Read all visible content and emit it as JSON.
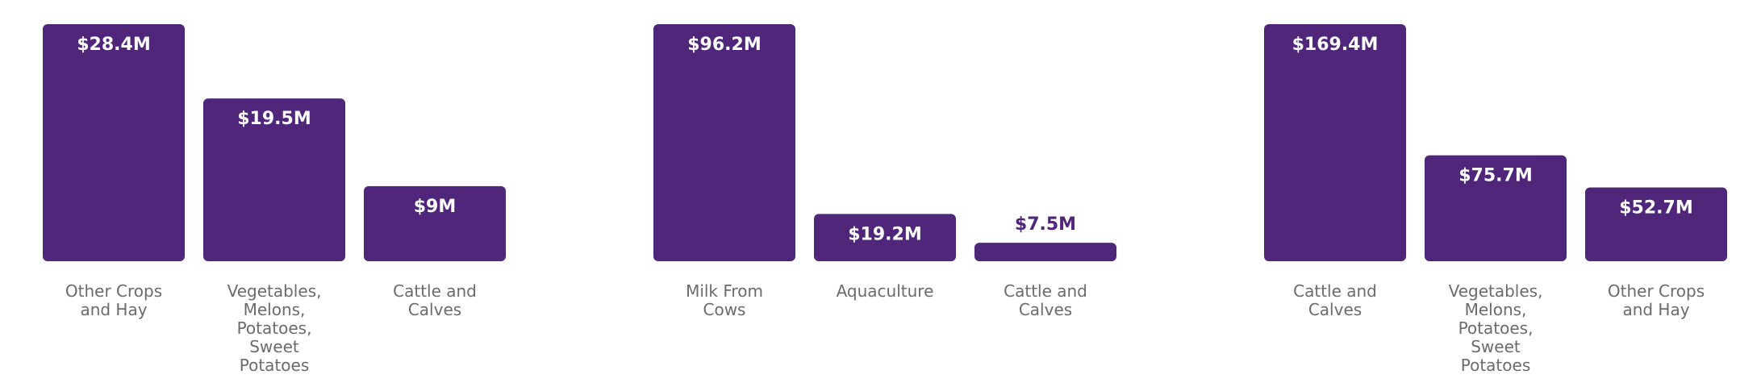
{
  "colors": {
    "bar": "#4f267a",
    "label_text": "#6b6b6b",
    "value_text_inside": "#ffffff"
  },
  "chart_data": [
    {
      "type": "bar",
      "categories": [
        "Other Crops and Hay",
        "Vegetables, Melons, Potatoes, Sweet Potatoes",
        "Cattle and Calves"
      ],
      "category_lines": [
        [
          "Other Crops",
          "and Hay"
        ],
        [
          "Vegetables,",
          "Melons,",
          "Potatoes,",
          "Sweet",
          "Potatoes"
        ],
        [
          "Cattle and",
          "Calves"
        ]
      ],
      "values": [
        28.4,
        19.5,
        9
      ],
      "value_labels": [
        "$28.4M",
        "$19.5M",
        "$9M"
      ],
      "ylim": [
        0,
        28.4
      ],
      "grid": false
    },
    {
      "type": "bar",
      "categories": [
        "Milk From Cows",
        "Aquaculture",
        "Cattle and Calves"
      ],
      "category_lines": [
        [
          "Milk From",
          "Cows"
        ],
        [
          "Aquaculture"
        ],
        [
          "Cattle and",
          "Calves"
        ]
      ],
      "values": [
        96.2,
        19.2,
        7.5
      ],
      "value_labels": [
        "$96.2M",
        "$19.2M",
        "$7.5M"
      ],
      "ylim": [
        0,
        96.2
      ],
      "grid": false
    },
    {
      "type": "bar",
      "categories": [
        "Cattle and Calves",
        "Vegetables, Melons, Potatoes, Sweet Potatoes",
        "Other Crops and Hay"
      ],
      "category_lines": [
        [
          "Cattle and",
          "Calves"
        ],
        [
          "Vegetables,",
          "Melons,",
          "Potatoes,",
          "Sweet",
          "Potatoes"
        ],
        [
          "Other Crops",
          "and Hay"
        ]
      ],
      "values": [
        169.4,
        75.7,
        52.7
      ],
      "value_labels": [
        "$169.4M",
        "$75.7M",
        "$52.7M"
      ],
      "ylim": [
        0,
        169.4
      ],
      "grid": false
    }
  ]
}
